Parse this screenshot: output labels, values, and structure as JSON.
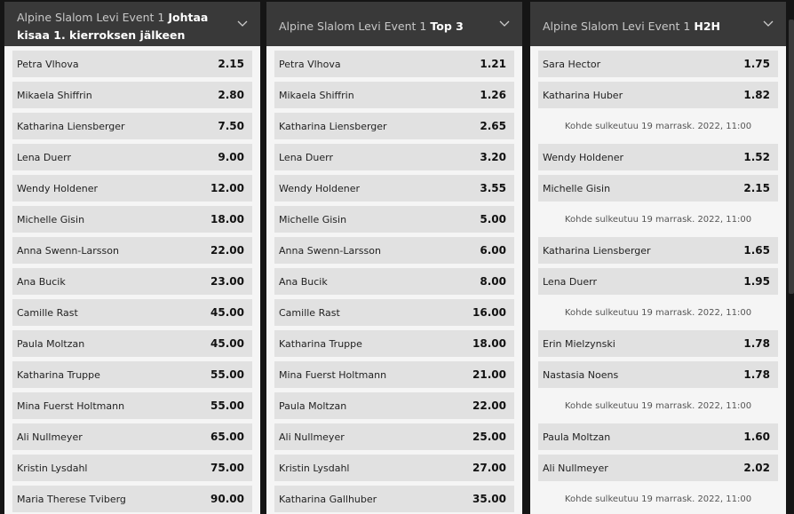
{
  "columns": [
    {
      "title_prefix": "Alpine Slalom Levi Event 1",
      "title_bold": "Johtaa kisaa 1. kierroksen jälkeen",
      "items": [
        {
          "name": "Petra Vlhova",
          "odds": "2.15"
        },
        {
          "name": "Mikaela Shiffrin",
          "odds": "2.80"
        },
        {
          "name": "Katharina Liensberger",
          "odds": "7.50"
        },
        {
          "name": "Lena Duerr",
          "odds": "9.00"
        },
        {
          "name": "Wendy Holdener",
          "odds": "12.00"
        },
        {
          "name": "Michelle Gisin",
          "odds": "18.00"
        },
        {
          "name": "Anna Swenn-Larsson",
          "odds": "22.00"
        },
        {
          "name": "Ana Bucik",
          "odds": "23.00"
        },
        {
          "name": "Camille Rast",
          "odds": "45.00"
        },
        {
          "name": "Paula Moltzan",
          "odds": "45.00"
        },
        {
          "name": "Katharina Truppe",
          "odds": "55.00"
        },
        {
          "name": "Mina Fuerst Holtmann",
          "odds": "55.00"
        },
        {
          "name": "Ali Nullmeyer",
          "odds": "65.00"
        },
        {
          "name": "Kristin Lysdahl",
          "odds": "75.00"
        },
        {
          "name": "Maria Therese Tviberg",
          "odds": "90.00"
        }
      ]
    },
    {
      "title_prefix": "Alpine Slalom Levi Event 1",
      "title_bold": "Top 3",
      "items": [
        {
          "name": "Petra Vlhova",
          "odds": "1.21"
        },
        {
          "name": "Mikaela Shiffrin",
          "odds": "1.26"
        },
        {
          "name": "Katharina Liensberger",
          "odds": "2.65"
        },
        {
          "name": "Lena Duerr",
          "odds": "3.20"
        },
        {
          "name": "Wendy Holdener",
          "odds": "3.55"
        },
        {
          "name": "Michelle Gisin",
          "odds": "5.00"
        },
        {
          "name": "Anna Swenn-Larsson",
          "odds": "6.00"
        },
        {
          "name": "Ana Bucik",
          "odds": "8.00"
        },
        {
          "name": "Camille Rast",
          "odds": "16.00"
        },
        {
          "name": "Katharina Truppe",
          "odds": "18.00"
        },
        {
          "name": "Mina Fuerst Holtmann",
          "odds": "21.00"
        },
        {
          "name": "Paula Moltzan",
          "odds": "22.00"
        },
        {
          "name": "Ali Nullmeyer",
          "odds": "25.00"
        },
        {
          "name": "Kristin Lysdahl",
          "odds": "27.00"
        },
        {
          "name": "Katharina Gallhuber",
          "odds": "35.00"
        }
      ]
    },
    {
      "title_prefix": "Alpine Slalom Levi Event 1",
      "title_bold": "H2H",
      "items": [
        {
          "name": "Sara Hector",
          "odds": "1.75"
        },
        {
          "name": "Katharina Huber",
          "odds": "1.82"
        },
        {
          "note": "Kohde sulkeutuu 19 marrask. 2022, 11:00"
        },
        {
          "name": "Wendy Holdener",
          "odds": "1.52"
        },
        {
          "name": "Michelle Gisin",
          "odds": "2.15"
        },
        {
          "note": "Kohde sulkeutuu 19 marrask. 2022, 11:00"
        },
        {
          "name": "Katharina Liensberger",
          "odds": "1.65"
        },
        {
          "name": "Lena Duerr",
          "odds": "1.95"
        },
        {
          "note": "Kohde sulkeutuu 19 marrask. 2022, 11:00"
        },
        {
          "name": "Erin Mielzynski",
          "odds": "1.78"
        },
        {
          "name": "Nastasia Noens",
          "odds": "1.78"
        },
        {
          "note": "Kohde sulkeutuu 19 marrask. 2022, 11:00"
        },
        {
          "name": "Paula Moltzan",
          "odds": "1.60"
        },
        {
          "name": "Ali Nullmeyer",
          "odds": "2.02"
        },
        {
          "note": "Kohde sulkeutuu 19 marrask. 2022, 11:00"
        }
      ]
    }
  ]
}
